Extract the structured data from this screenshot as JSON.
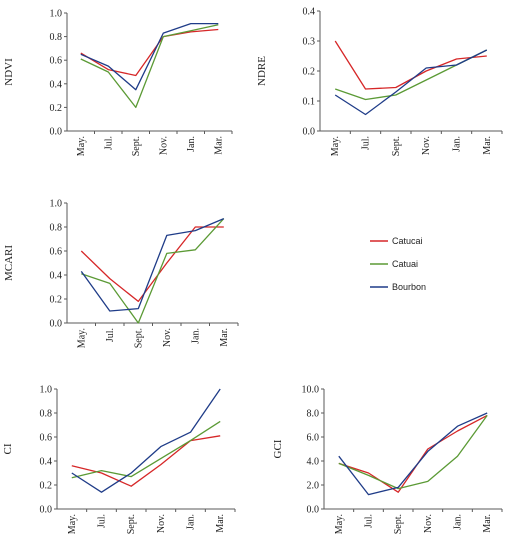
{
  "months": [
    "May.",
    "Jul.",
    "Sept.",
    "Nov.",
    "Jan.",
    "Mar."
  ],
  "colors": {
    "Catucai": "#d62728",
    "Catuai": "#5b9a35",
    "Bourbon": "#1f3c88",
    "axis": "#595959"
  },
  "legend": [
    "Catucai",
    "Catuai",
    "Bourbon"
  ],
  "chart_data": [
    {
      "id": "ndvi",
      "type": "line",
      "ylabel": "NDVI",
      "ylim": [
        0,
        1.0
      ],
      "yticks": [
        "0.0",
        "0.2",
        "0.4",
        "0.6",
        "0.8",
        "1.0"
      ],
      "series": [
        {
          "name": "Catucai",
          "values": [
            0.66,
            0.52,
            0.47,
            0.8,
            0.84,
            0.86
          ]
        },
        {
          "name": "Catuai",
          "values": [
            0.61,
            0.5,
            0.2,
            0.8,
            0.85,
            0.9
          ]
        },
        {
          "name": "Bourbon",
          "values": [
            0.65,
            0.55,
            0.35,
            0.83,
            0.91,
            0.91
          ]
        }
      ]
    },
    {
      "id": "ndre",
      "type": "line",
      "ylabel": "NDRE",
      "ylim": [
        0,
        0.4
      ],
      "yticks": [
        "0.0",
        "0.1",
        "0.2",
        "0.3",
        "0.4"
      ],
      "series": [
        {
          "name": "Catucai",
          "values": [
            0.3,
            0.14,
            0.145,
            0.2,
            0.24,
            0.25
          ]
        },
        {
          "name": "Catuai",
          "values": [
            0.14,
            0.105,
            0.12,
            0.17,
            0.22,
            0.27
          ]
        },
        {
          "name": "Bourbon",
          "values": [
            0.12,
            0.055,
            0.13,
            0.21,
            0.22,
            0.27
          ]
        }
      ]
    },
    {
      "id": "mcari",
      "type": "line",
      "ylabel": "MCARI",
      "ylim": [
        0,
        1.0
      ],
      "yticks": [
        "0.0",
        "0.2",
        "0.4",
        "0.6",
        "0.8",
        "1.0"
      ],
      "series": [
        {
          "name": "Catucai",
          "values": [
            0.6,
            0.37,
            0.18,
            0.5,
            0.8,
            0.8
          ]
        },
        {
          "name": "Catuai",
          "values": [
            0.41,
            0.33,
            0.0,
            0.58,
            0.61,
            0.87
          ]
        },
        {
          "name": "Bourbon",
          "values": [
            0.43,
            0.1,
            0.12,
            0.73,
            0.77,
            0.87
          ]
        }
      ]
    },
    {
      "id": "ci",
      "type": "line",
      "ylabel": "CI",
      "ylim": [
        0,
        1.0
      ],
      "yticks": [
        "0.0",
        "0.2",
        "0.4",
        "0.6",
        "0.8",
        "1.0"
      ],
      "series": [
        {
          "name": "Catucai",
          "values": [
            0.36,
            0.3,
            0.19,
            0.37,
            0.57,
            0.61
          ]
        },
        {
          "name": "Catuai",
          "values": [
            0.26,
            0.32,
            0.27,
            0.42,
            0.57,
            0.73
          ]
        },
        {
          "name": "Bourbon",
          "values": [
            0.3,
            0.14,
            0.3,
            0.52,
            0.64,
            1.0
          ]
        }
      ]
    },
    {
      "id": "gci",
      "type": "line",
      "ylabel": "GCI",
      "ylim": [
        0,
        10.0
      ],
      "yticks": [
        "0.0",
        "2.0",
        "4.0",
        "6.0",
        "8.0",
        "10.0"
      ],
      "series": [
        {
          "name": "Catucai",
          "values": [
            3.8,
            3.0,
            1.4,
            5.0,
            6.5,
            7.8
          ]
        },
        {
          "name": "Catuai",
          "values": [
            3.8,
            2.8,
            1.7,
            2.3,
            4.4,
            7.8
          ]
        },
        {
          "name": "Bourbon",
          "values": [
            4.4,
            1.2,
            1.8,
            4.8,
            6.9,
            8.0
          ]
        }
      ]
    }
  ]
}
